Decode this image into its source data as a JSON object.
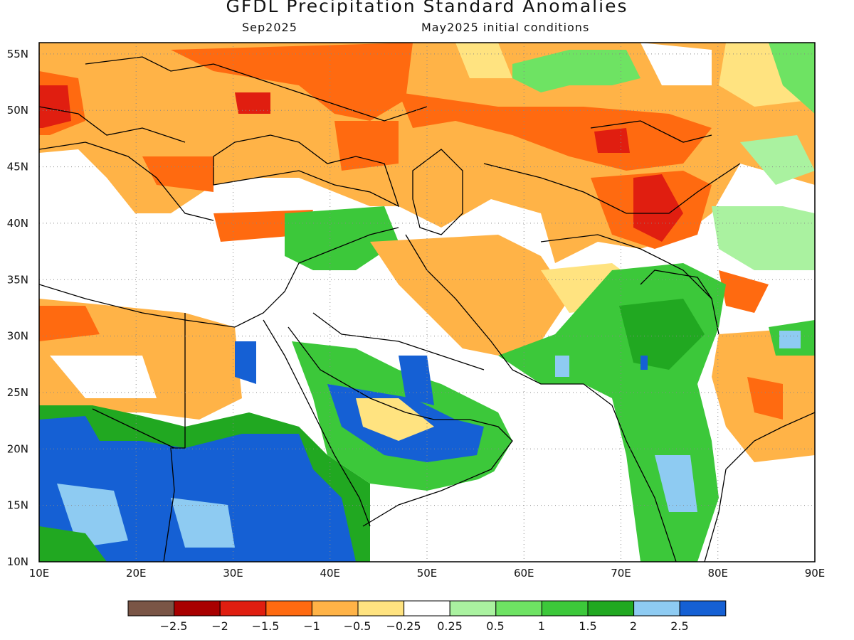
{
  "title": "GFDL Precipitation Standard Anomalies",
  "subtitle_left": "Sep2025",
  "subtitle_right": "May2025 initial conditions",
  "map": {
    "lon_range": [
      10,
      90
    ],
    "lat_range": [
      10,
      56
    ],
    "lon_ticks": [
      "10E",
      "20E",
      "30E",
      "40E",
      "50E",
      "60E",
      "70E",
      "80E",
      "90E"
    ],
    "lat_ticks": [
      "10N",
      "15N",
      "20N",
      "25N",
      "30N",
      "35N",
      "40N",
      "45N",
      "50N",
      "55N"
    ],
    "grid": "dotted"
  },
  "colorbar": {
    "labels": [
      "−2.5",
      "−2",
      "−1.5",
      "−1",
      "−0.5",
      "−0.25",
      "0.25",
      "0.5",
      "1",
      "1.5",
      "2",
      "2.5"
    ],
    "colors": [
      "#7a5546",
      "#a80000",
      "#e01e10",
      "#ff6a10",
      "#ffb347",
      "#ffe380",
      "#ffffff",
      "#aaf2a0",
      "#6ee363",
      "#3cc83a",
      "#21a821",
      "#8ecbf2",
      "#1560d4"
    ]
  }
}
